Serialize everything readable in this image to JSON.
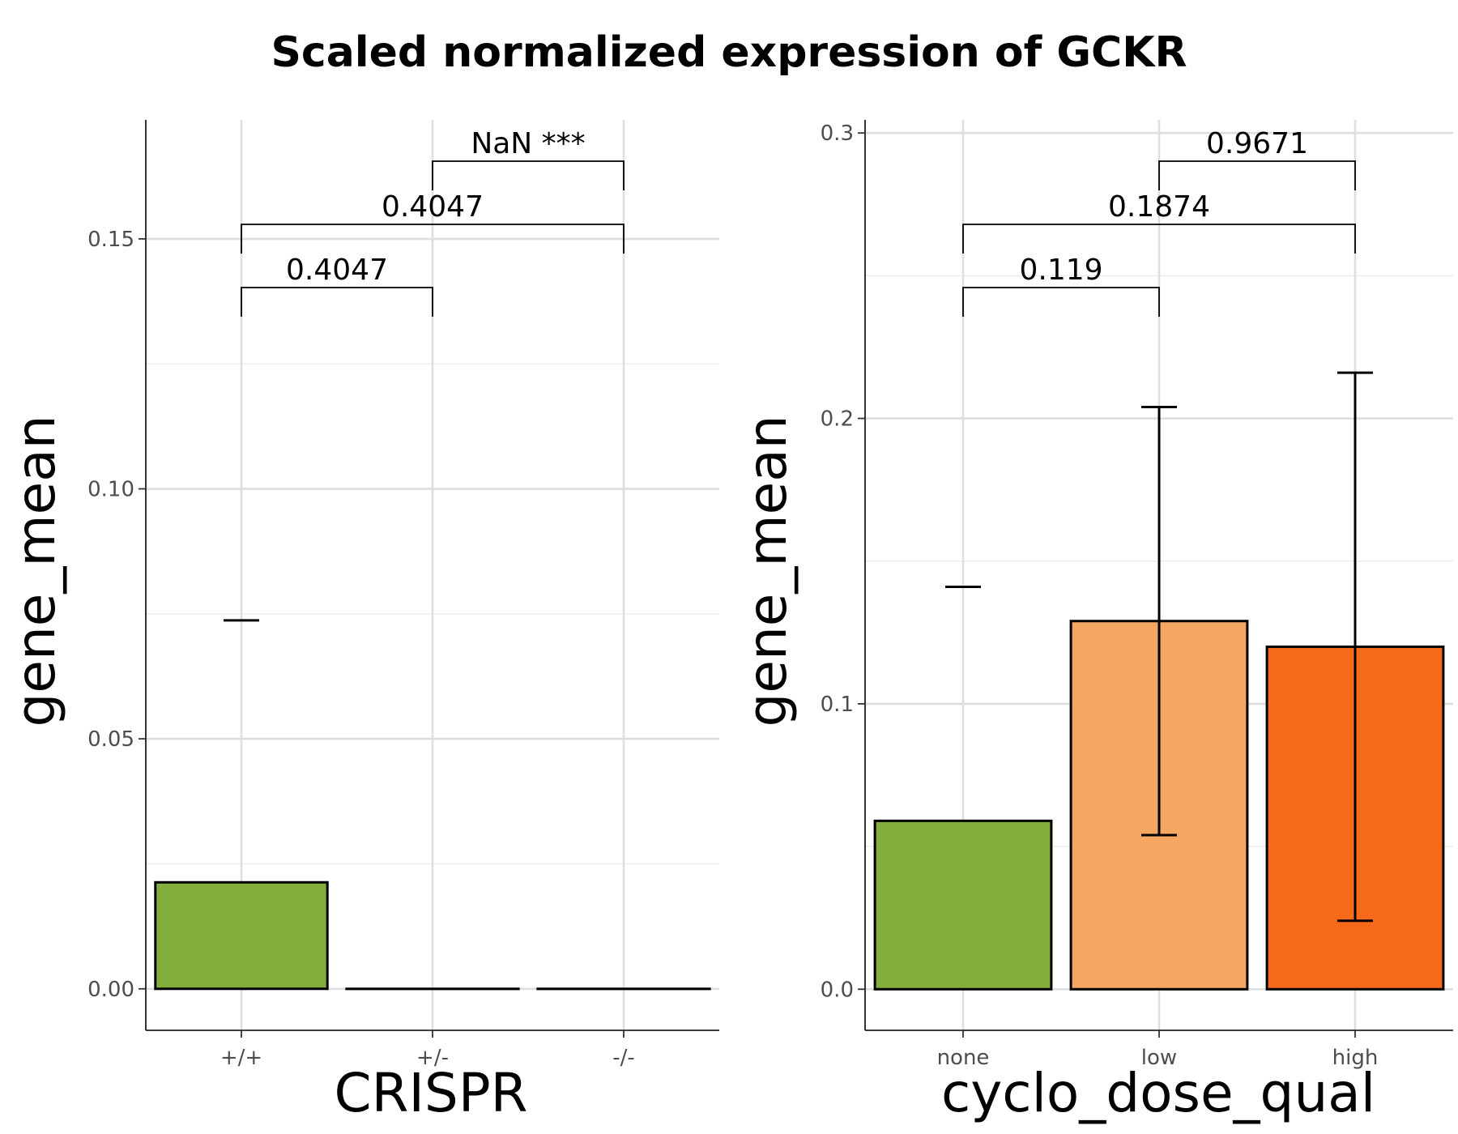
{
  "figure_title": "Scaled normalized expression of GCKR",
  "chart_data": [
    {
      "type": "bar",
      "xlabel": "CRISPR",
      "ylabel": "gene_mean",
      "categories": [
        "+/+",
        "+/-",
        "-/-"
      ],
      "values": [
        0.0213,
        0.0,
        0.0
      ],
      "error_low": [
        null,
        null,
        null
      ],
      "error_high": [
        0.0737,
        null,
        null
      ],
      "colors": [
        "#82ae3d",
        "#f5a663",
        "#f66a1a"
      ],
      "ylim": [
        -0.0083,
        0.1738
      ],
      "yticks": [
        0.0,
        0.05,
        0.1,
        0.15
      ],
      "ytick_labels": [
        "0.00",
        "0.05",
        "0.10",
        "0.15"
      ],
      "comparisons": [
        {
          "from": 0,
          "to": 1,
          "label": "0.4047",
          "level": 0
        },
        {
          "from": 0,
          "to": 2,
          "label": "0.4047",
          "level": 1
        },
        {
          "from": 1,
          "to": 2,
          "label": "NaN ***",
          "level": 2
        }
      ],
      "grid": true,
      "legend": "none"
    },
    {
      "type": "bar",
      "xlabel": "cyclo_dose_qual",
      "ylabel": "gene_mean",
      "categories": [
        "none",
        "low",
        "high"
      ],
      "values": [
        0.059,
        0.129,
        0.12
      ],
      "error_low": [
        null,
        0.054,
        0.024
      ],
      "error_high": [
        0.141,
        0.204,
        0.216
      ],
      "colors": [
        "#82ae3d",
        "#f5a663",
        "#f66a1a"
      ],
      "ylim": [
        -0.0144,
        0.3046
      ],
      "yticks": [
        0.0,
        0.1,
        0.2,
        0.3
      ],
      "ytick_labels": [
        "0.0",
        "0.1",
        "0.2",
        "0.3"
      ],
      "comparisons": [
        {
          "from": 0,
          "to": 1,
          "label": "0.119",
          "level": 0
        },
        {
          "from": 0,
          "to": 2,
          "label": "0.1874",
          "level": 1
        },
        {
          "from": 1,
          "to": 2,
          "label": "0.9671",
          "level": 2
        }
      ],
      "grid": true,
      "legend": "none"
    }
  ]
}
